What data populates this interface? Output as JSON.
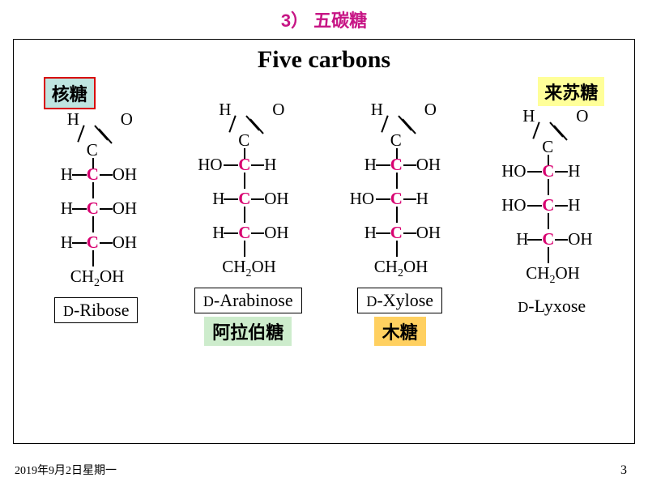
{
  "title": "3） 五碳糖",
  "box_title": "Five carbons",
  "footer_date": "2019年9月2日星期一",
  "page_number": "3",
  "colors": {
    "title_color": "#c71585",
    "carbon_color": "#d80070",
    "ribose_tag_bg": "#bfe5e0",
    "ribose_tag_border": "#d80000",
    "lyxose_tag_bg": "#ffff99",
    "ara_tag_bg": "#cdeccc",
    "xyl_tag_bg": "#ffd060",
    "border": "#000000",
    "background": "#ffffff"
  },
  "diagram_meta": {
    "type": "chemical-structure-row",
    "aldehyde_top": {
      "left": "H",
      "right_double": "O",
      "center": "C"
    },
    "terminal_group": "CH2OH",
    "chain_length": 3,
    "chain_labels_right_hydroxyl": {
      "left": "H",
      "right": "OH"
    },
    "chain_labels_left_hydroxyl": {
      "left": "HO",
      "right": "H"
    },
    "font_family": "Times New Roman",
    "atom_fontsize": 21,
    "title_fontsize": 30,
    "tag_fontsize": 22
  },
  "molecules": [
    {
      "tag_top": "核糖",
      "tag_top_style": "ribose",
      "chain": [
        "R",
        "R",
        "R"
      ],
      "name_prefix": "D",
      "name": "-Ribose",
      "name_boxed": true,
      "tag_bottom": null
    },
    {
      "tag_top": null,
      "chain": [
        "L",
        "R",
        "R"
      ],
      "name_prefix": "D",
      "name": "-Arabinose",
      "name_boxed": true,
      "tag_bottom": "阿拉伯糖",
      "tag_bottom_style": "ara"
    },
    {
      "tag_top": null,
      "chain": [
        "R",
        "L",
        "R"
      ],
      "name_prefix": "D",
      "name": "-Xylose",
      "name_boxed": true,
      "tag_bottom": "木糖",
      "tag_bottom_style": "xyl"
    },
    {
      "tag_top": "来苏糖",
      "tag_top_style": "lyxose",
      "chain": [
        "L",
        "L",
        "R"
      ],
      "name_prefix": "D",
      "name": "-Lyxose",
      "name_boxed": false,
      "tag_bottom": null
    }
  ]
}
